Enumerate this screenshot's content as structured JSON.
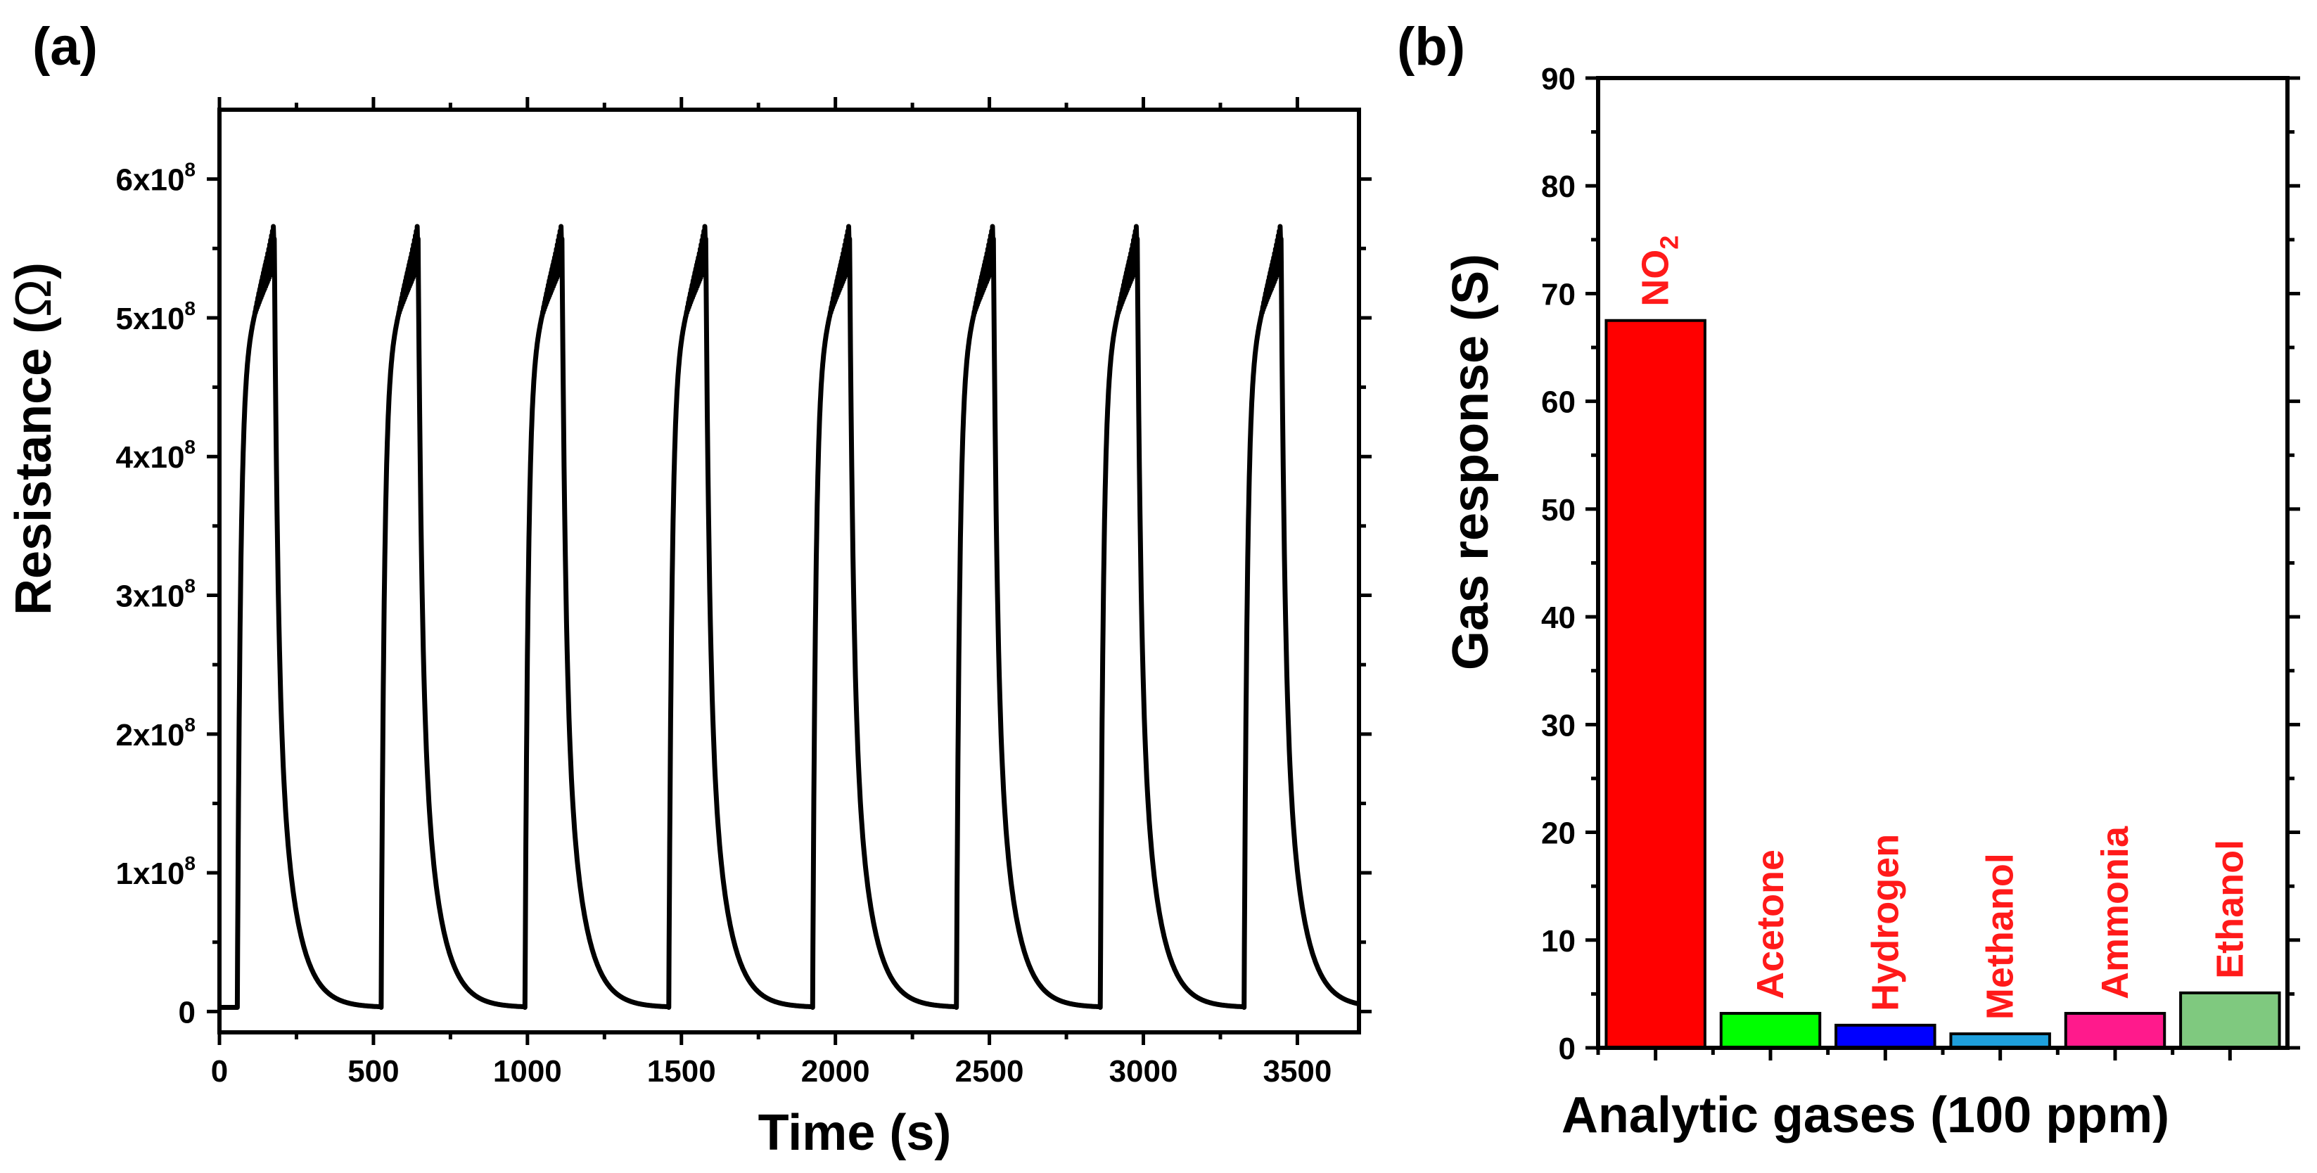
{
  "chart_data": [
    {
      "panel": "(a)",
      "type": "line",
      "xlabel": "Time (s)",
      "ylabel_prefix": "Resistance (",
      "ylabel_symbol": "Ω",
      "ylabel_suffix": ")",
      "xlim": [
        0,
        3700
      ],
      "ylim": [
        -15000000,
        650000000
      ],
      "xticks": [
        0,
        500,
        1000,
        1500,
        2000,
        2500,
        3000,
        3500
      ],
      "xtick_labels": [
        "0",
        "500",
        "1000",
        "1500",
        "2000",
        "2500",
        "3000",
        "3500"
      ],
      "yticks": [
        {
          "value": 0,
          "base": "0",
          "exp": ""
        },
        {
          "value": 100000000,
          "base": "1x10",
          "exp": "8"
        },
        {
          "value": 200000000,
          "base": "2x10",
          "exp": "8"
        },
        {
          "value": 300000000,
          "base": "3x10",
          "exp": "8"
        },
        {
          "value": 400000000,
          "base": "4x10",
          "exp": "8"
        },
        {
          "value": 500000000,
          "base": "5x10",
          "exp": "8"
        },
        {
          "value": 600000000,
          "base": "6x10",
          "exp": "8"
        }
      ],
      "baseline_resistance": 3000000,
      "peak_resistance": 557000000,
      "cycle_period": 467,
      "cycle_starts": [
        58,
        525,
        992,
        1459,
        1926,
        2393,
        2860,
        3327
      ],
      "gas_on_duration": 120,
      "x_end": 3700,
      "series": [
        {
          "name": "Resistance",
          "color": "#000000"
        }
      ]
    },
    {
      "panel": "(b)",
      "type": "bar",
      "xlabel": "Analytic gases (100 ppm)",
      "ylabel": "Gas response (S)",
      "ylim": [
        0,
        90
      ],
      "yticks": [
        0,
        10,
        20,
        30,
        40,
        50,
        60,
        70,
        80,
        90
      ],
      "categories": [
        "NO2",
        "Acetone",
        "Hydrogen",
        "Methanol",
        "Ammonia",
        "Ethanol"
      ],
      "values": [
        67.5,
        3.2,
        2.1,
        1.3,
        3.2,
        5.1
      ],
      "colors": [
        "#ff0000",
        "#00ff00",
        "#0000ff",
        "#1e9fdc",
        "#ff1a8c",
        "#7fc97f"
      ],
      "bar_labels": [
        {
          "main": "NO",
          "sub": "2"
        },
        {
          "main": "Acetone",
          "sub": ""
        },
        {
          "main": "Hydrogen",
          "sub": ""
        },
        {
          "main": "Methanol",
          "sub": ""
        },
        {
          "main": "Ammonia",
          "sub": ""
        },
        {
          "main": "Ethanol",
          "sub": ""
        }
      ],
      "bar_label_color": "#ff1a1a"
    }
  ]
}
